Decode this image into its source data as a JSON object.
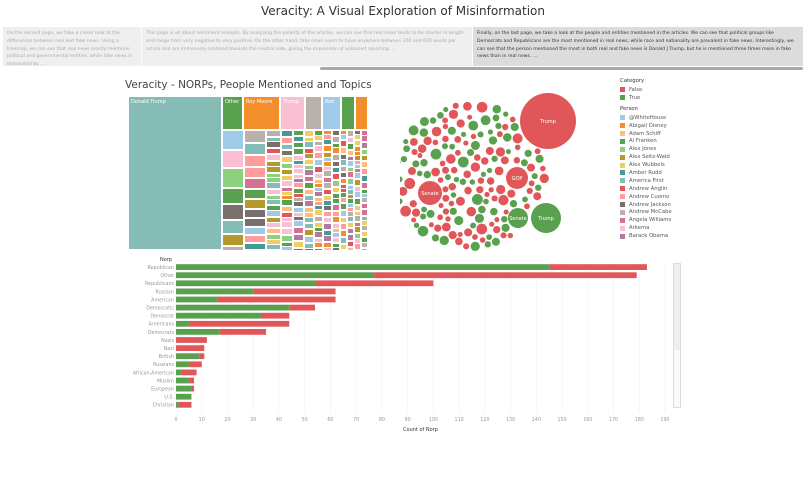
{
  "title": "Veracity: A Visual Exploration of Misinformation",
  "story_points": [
    {
      "text": "On the second page, we take a closer look at the differences between real and fake news. Using a treemap, we can see that real news mostly mentions political and governmental entities, while fake news is dominated by ...",
      "active": false
    },
    {
      "text": "This page is all about sentiment analysis. By analyzing the polarity of the articles, we can see that real news tends to be shorter in length and range from very negative to very positive. On the other hand, fake news seem to have anywhere between 200 and 600 words per article and are immensely centered towards the neutral side, giving the impression of unbiased reporting. ...",
      "active": false
    },
    {
      "text": "Finally, on the last page, we take a look at the people and entities mentioned in the articles. We can see that political groups like Democrats and Republicans are the most mentioned in real news, while race and nationality are prevalent in fake news. Interestingly, we can see that the person mentioned the most in both real and fake news is Donald J Trump, but he is mentioned three times more in fake news than in real news. ...",
      "active": true
    }
  ],
  "section_title": "Veracity - NORPs, People Mentioned and Topics",
  "colors": {
    "false": "#e15759",
    "true": "#59a14f"
  },
  "treemap": {
    "labeled_tiles": [
      {
        "label": "Donald Trump",
        "color": "#86bcb6"
      },
      {
        "label": "Other",
        "color": "#59a14f"
      },
      {
        "label": "Roy Moore",
        "color": "#f28e2b"
      },
      {
        "label": "Trump",
        "color": "#fabfd2"
      },
      {
        "label": "",
        "color": "#bab0ac"
      },
      {
        "label": "Rex",
        "color": "#a0cbe8"
      },
      {
        "label": "",
        "color": "#59a14f"
      },
      {
        "label": "",
        "color": "#f28e2b"
      }
    ]
  },
  "bubbles": {
    "labeled": [
      {
        "label": "Trump",
        "category": "false"
      },
      {
        "label": "GOP",
        "category": "false"
      },
      {
        "label": "Senate",
        "category": "false"
      },
      {
        "label": "Senate",
        "category": "true"
      },
      {
        "label": "Trump",
        "category": "true"
      }
    ]
  },
  "legend": {
    "category_title": "Category",
    "categories": [
      {
        "label": "False",
        "color": "#e15759"
      },
      {
        "label": "True",
        "color": "#59a14f"
      }
    ],
    "person_title": "Person",
    "persons": [
      {
        "label": "@WhiteHouse",
        "color": "#a0cbe8"
      },
      {
        "label": "Abigail Disney",
        "color": "#f28e2b"
      },
      {
        "label": "Adam Schiff",
        "color": "#ffbe7d"
      },
      {
        "label": "Al Franken",
        "color": "#59a14f"
      },
      {
        "label": "Alex Jones",
        "color": "#8cd17d"
      },
      {
        "label": "Alex Seitz-Wald",
        "color": "#b6992d"
      },
      {
        "label": "Alex Wubbels",
        "color": "#f1ce63"
      },
      {
        "label": "Amber Rudd",
        "color": "#499894"
      },
      {
        "label": "America First",
        "color": "#86bcb6"
      },
      {
        "label": "Andrew Anglin",
        "color": "#e15759"
      },
      {
        "label": "Andrew Cuomo",
        "color": "#ff9d9a"
      },
      {
        "label": "Andrew Jackson",
        "color": "#79706e"
      },
      {
        "label": "Andrew McCabe",
        "color": "#bab0ac"
      },
      {
        "label": "Angela Williams",
        "color": "#d37295"
      },
      {
        "label": "Arkema",
        "color": "#fabfd2"
      },
      {
        "label": "Barack Obama",
        "color": "#b07aa1"
      }
    ]
  },
  "chart_data": {
    "type": "bar",
    "orientation": "horizontal",
    "stacked": true,
    "ylabel": "Norp",
    "xlabel": "Count of Norp",
    "xlim": [
      0,
      190
    ],
    "xticks": [
      0,
      10,
      20,
      30,
      40,
      50,
      60,
      70,
      80,
      90,
      100,
      110,
      120,
      130,
      140,
      150,
      160,
      170,
      180,
      190
    ],
    "grid": true,
    "categories": [
      "Republican",
      "Other",
      "Republicans",
      "Russian",
      "American",
      "Democratic",
      "Democrat",
      "Americans",
      "Democrats",
      "Nazis",
      "Nazi",
      "British",
      "Russians",
      "African-American",
      "Muslim",
      "European",
      "U.S.",
      "Christian"
    ],
    "series": [
      {
        "name": "True",
        "color": "#59a14f",
        "values": [
          145,
          77,
          54,
          30,
          16,
          44,
          33,
          5,
          17,
          0,
          0,
          9,
          5,
          2,
          5,
          6,
          6,
          1
        ]
      },
      {
        "name": "False",
        "color": "#e15759",
        "values": [
          38,
          102,
          46,
          32,
          46,
          10,
          11,
          39,
          18,
          12,
          11,
          2,
          5,
          6,
          2,
          1,
          0,
          5
        ]
      }
    ]
  }
}
